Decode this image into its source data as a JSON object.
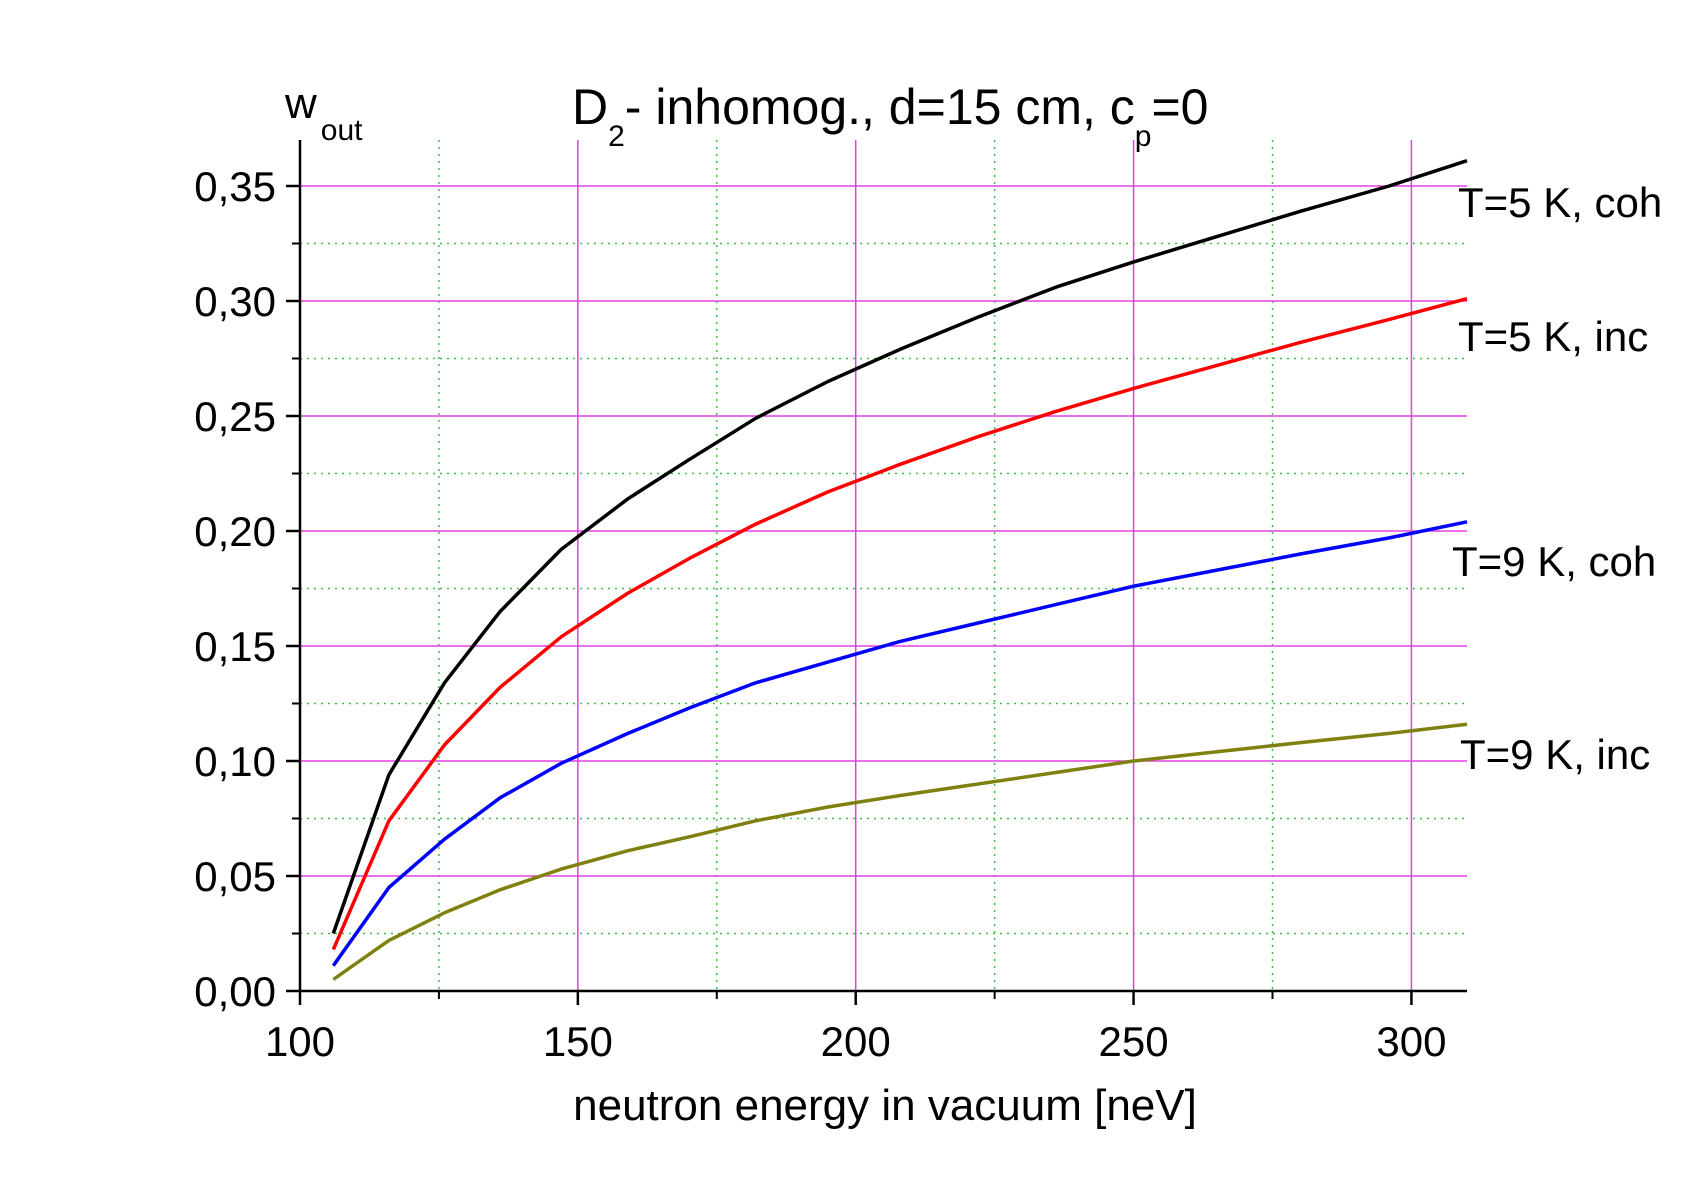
{
  "chart_data": {
    "type": "line",
    "title": {
      "main": "D",
      "main_sub": "2",
      "middle": "- inhomog., d=15 cm, c",
      "end_sub": "p",
      "end": "=0"
    },
    "ylabel": {
      "main": "w",
      "sub": "out"
    },
    "xlabel": "neutron energy in vacuum [neV]",
    "xlim": [
      100,
      310
    ],
    "ylim": [
      0,
      0.37
    ],
    "xticks": [
      {
        "value": 100,
        "label": "100"
      },
      {
        "value": 150,
        "label": "150"
      },
      {
        "value": 200,
        "label": "200"
      },
      {
        "value": 250,
        "label": "250"
      },
      {
        "value": 300,
        "label": "300"
      }
    ],
    "yticks": [
      {
        "value": 0.0,
        "label": "0,00"
      },
      {
        "value": 0.05,
        "label": "0,05"
      },
      {
        "value": 0.1,
        "label": "0,10"
      },
      {
        "value": 0.15,
        "label": "0,15"
      },
      {
        "value": 0.2,
        "label": "0,20"
      },
      {
        "value": 0.25,
        "label": "0,25"
      },
      {
        "value": 0.3,
        "label": "0,30"
      },
      {
        "value": 0.35,
        "label": "0,35"
      }
    ],
    "grid": {
      "major_color": "#e040e0",
      "minor_color": "#40c040"
    },
    "series": [
      {
        "name": "T=5 K, coh",
        "color": "#000000",
        "x": [
          106,
          116,
          126,
          136,
          147,
          159,
          170,
          182,
          195,
          208,
          222,
          236,
          250,
          265,
          280,
          296,
          310
        ],
        "y": [
          0.025,
          0.094,
          0.134,
          0.165,
          0.192,
          0.214,
          0.231,
          0.249,
          0.265,
          0.279,
          0.293,
          0.306,
          0.317,
          0.328,
          0.339,
          0.35,
          0.361
        ]
      },
      {
        "name": "T=5 K, inc",
        "color": "#ff0000",
        "x": [
          106,
          116,
          126,
          136,
          147,
          159,
          170,
          182,
          195,
          208,
          222,
          236,
          250,
          265,
          280,
          296,
          310
        ],
        "y": [
          0.018,
          0.074,
          0.107,
          0.132,
          0.154,
          0.173,
          0.188,
          0.203,
          0.217,
          0.229,
          0.241,
          0.252,
          0.262,
          0.272,
          0.282,
          0.292,
          0.301
        ]
      },
      {
        "name": "T=9 K, coh",
        "color": "#0000ff",
        "x": [
          106,
          116,
          126,
          136,
          147,
          159,
          170,
          182,
          195,
          208,
          222,
          236,
          250,
          265,
          280,
          296,
          310
        ],
        "y": [
          0.011,
          0.045,
          0.066,
          0.084,
          0.099,
          0.112,
          0.123,
          0.134,
          0.143,
          0.152,
          0.16,
          0.168,
          0.176,
          0.183,
          0.19,
          0.197,
          0.204
        ]
      },
      {
        "name": "T=9 K, inc",
        "color": "#808010",
        "x": [
          106,
          116,
          126,
          136,
          147,
          159,
          170,
          182,
          195,
          208,
          222,
          236,
          250,
          265,
          280,
          296,
          310
        ],
        "y": [
          0.005,
          0.022,
          0.034,
          0.044,
          0.053,
          0.061,
          0.067,
          0.074,
          0.08,
          0.085,
          0.09,
          0.095,
          0.1,
          0.104,
          0.108,
          0.112,
          0.116
        ]
      }
    ]
  }
}
